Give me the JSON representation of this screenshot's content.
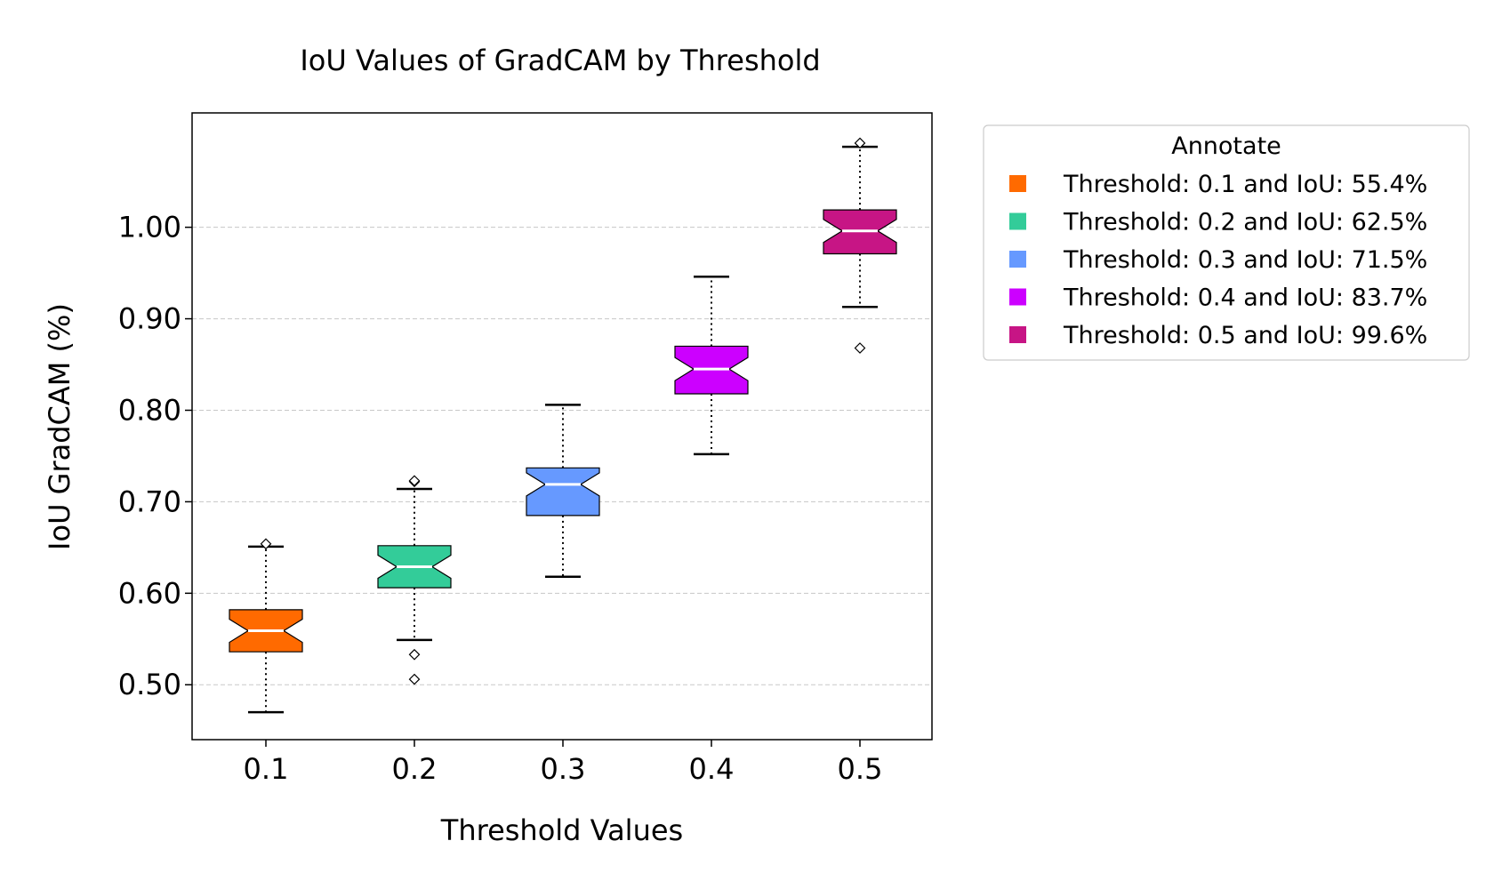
{
  "chart_data": {
    "type": "box",
    "title": "IoU Values of GradCAM by Threshold",
    "xlabel": "Threshold Values",
    "ylabel": "IoU GradCAM (%)",
    "categories": [
      "0.1",
      "0.2",
      "0.3",
      "0.4",
      "0.5"
    ],
    "y_ticks": [
      "0.50",
      "0.60",
      "0.70",
      "0.80",
      "0.90",
      "1.00"
    ],
    "ylim": [
      0.44,
      1.125
    ],
    "grid": "horizontal-dashed",
    "legend": {
      "title": "Annotate",
      "placement": "outside-top-right",
      "entries": [
        "Threshold: 0.1 and IoU: 55.4%",
        "Threshold: 0.2 and IoU: 62.5%",
        "Threshold: 0.3 and IoU: 71.5%",
        "Threshold: 0.4 and IoU: 83.7%",
        "Threshold: 0.5 and IoU: 99.6%"
      ]
    },
    "boxes": [
      {
        "category": "0.1",
        "color": "#ff6a00",
        "whisker_low": 0.47,
        "q1": 0.536,
        "median": 0.559,
        "q3": 0.582,
        "whisker_high": 0.651,
        "outliers": [
          0.654
        ]
      },
      {
        "category": "0.2",
        "color": "#33cc99",
        "whisker_low": 0.549,
        "q1": 0.606,
        "median": 0.629,
        "q3": 0.652,
        "whisker_high": 0.714,
        "outliers": [
          0.533,
          0.506,
          0.722,
          0.723
        ]
      },
      {
        "category": "0.3",
        "color": "#6699ff",
        "whisker_low": 0.618,
        "q1": 0.685,
        "median": 0.719,
        "q3": 0.737,
        "whisker_high": 0.806,
        "outliers": []
      },
      {
        "category": "0.4",
        "color": "#cc00ff",
        "whisker_low": 0.752,
        "q1": 0.818,
        "median": 0.845,
        "q3": 0.87,
        "whisker_high": 0.946,
        "outliers": []
      },
      {
        "category": "0.5",
        "color": "#c71585",
        "whisker_low": 0.913,
        "q1": 0.971,
        "median": 0.996,
        "q3": 1.019,
        "whisker_high": 1.088,
        "outliers": [
          0.868,
          1.092
        ]
      }
    ]
  }
}
